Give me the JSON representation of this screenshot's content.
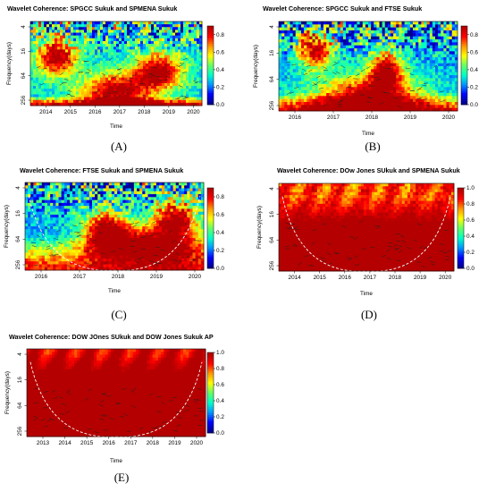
{
  "colorscale": [
    "#00008b",
    "#0000ff",
    "#0096ff",
    "#00ffc8",
    "#64ff64",
    "#ffff00",
    "#ff9600",
    "#ff0000",
    "#b40000"
  ],
  "chart_data": [
    {
      "id": "A",
      "type": "heatmap",
      "title": "Wavelet Coherence: SPGCC Sukuk and SPMENA Sukuk",
      "xlabel": "Time",
      "ylabel": "Frequency(days)",
      "x_ticks": [
        "2014",
        "2015",
        "2016",
        "2017",
        "2018",
        "2019",
        "2020"
      ],
      "y_ticks": [
        "4",
        "16",
        "64",
        "256"
      ],
      "colorbar_ticks": [
        "0.0",
        "0.2",
        "0.4",
        "0.6",
        "0.8"
      ],
      "colorbar_range": [
        0,
        0.9
      ],
      "panel_label": "(A)"
    },
    {
      "id": "B",
      "type": "heatmap",
      "title": "Wavelet Coherence: SPGCC Sukuk and FTSE Sukuk",
      "xlabel": "Time",
      "ylabel": "Frequency(days)",
      "x_ticks": [
        "2016",
        "2017",
        "2018",
        "2019",
        "2020"
      ],
      "y_ticks": [
        "4",
        "16",
        "64",
        "256"
      ],
      "colorbar_ticks": [
        "0.0",
        "0.2",
        "0.4",
        "0.6",
        "0.8"
      ],
      "colorbar_range": [
        0,
        0.9
      ],
      "panel_label": "(B)"
    },
    {
      "id": "C",
      "type": "heatmap",
      "title": "Wavelet Coherence: FTSE Sukuk and SPMENA Sukuk",
      "xlabel": "Time",
      "ylabel": "Frequency(days)",
      "x_ticks": [
        "2016",
        "2017",
        "2018",
        "2019",
        "2020"
      ],
      "y_ticks": [
        "4",
        "16",
        "64",
        "256"
      ],
      "colorbar_ticks": [
        "0.0",
        "0.2",
        "0.4",
        "0.6",
        "0.8"
      ],
      "colorbar_range": [
        0,
        0.9
      ],
      "panel_label": "(C)"
    },
    {
      "id": "D",
      "type": "heatmap",
      "title": "Wavelet Coherence: DOw Jones SUkuk and SPMENA Sukuk",
      "xlabel": "Time",
      "ylabel": "Frequency(days)",
      "x_ticks": [
        "2014",
        "2015",
        "2016",
        "2017",
        "2018",
        "2019",
        "2020"
      ],
      "y_ticks": [
        "4",
        "16",
        "64",
        "256"
      ],
      "colorbar_ticks": [
        "0.0",
        "0.2",
        "0.4",
        "0.6",
        "0.8",
        "1.0"
      ],
      "colorbar_range": [
        0,
        1.0
      ],
      "panel_label": "(D)"
    },
    {
      "id": "E",
      "type": "heatmap",
      "title": "Wavelet Coherence: DOW JOnes SUkuk and DOW Jones Sukuk AP",
      "xlabel": "Time",
      "ylabel": "Frequency(days)",
      "x_ticks": [
        "2013",
        "2014",
        "2015",
        "2016",
        "2017",
        "2018",
        "2019",
        "2020"
      ],
      "y_ticks": [
        "4",
        "16",
        "64",
        "256"
      ],
      "colorbar_ticks": [
        "0.0",
        "0.2",
        "0.4",
        "0.6",
        "0.8",
        "1.0"
      ],
      "colorbar_range": [
        0,
        1.0
      ],
      "panel_label": "(E)"
    }
  ]
}
